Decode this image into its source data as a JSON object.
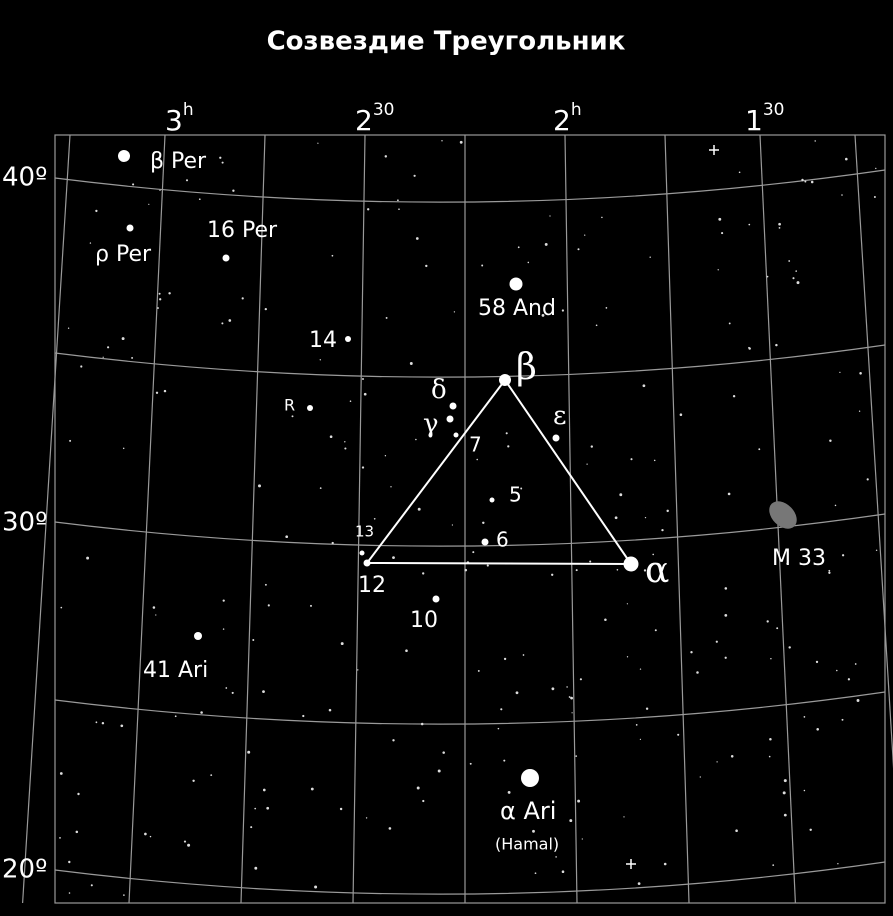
{
  "title": "Созвездие Треугольник",
  "ra_labels": [
    {
      "main": "3",
      "sup": "h"
    },
    {
      "main": "2",
      "sup": "30"
    },
    {
      "main": "2",
      "sup": "h"
    },
    {
      "main": "1",
      "sup": "30"
    }
  ],
  "dec_labels": [
    "40º",
    "30º",
    "20º"
  ],
  "labels": [
    "β Per",
    "ρ Per",
    "16 Per",
    "58 And",
    "14",
    "R",
    "β",
    "δ",
    "γ",
    "7",
    "ε",
    "5",
    "13",
    "6",
    "α",
    "12",
    "10",
    "M 33",
    "41 Ari",
    "α Ari",
    "(Hamal)"
  ]
}
